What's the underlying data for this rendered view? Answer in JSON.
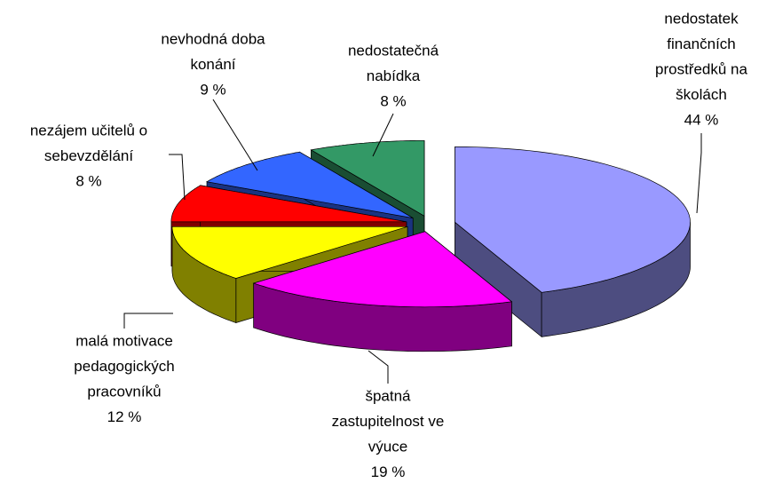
{
  "chart_data": {
    "type": "pie3d",
    "categories": [
      [
        "nedostatek",
        "finančních",
        "prostředků na",
        "školách"
      ],
      [
        "špatná",
        "zastupitelnost ve",
        "výuce"
      ],
      [
        "malá motivace",
        "pedagogických",
        "pracovníků"
      ],
      [
        "nezájem učitelů o",
        "sebevzdělání"
      ],
      [
        "nevhodná doba",
        "konání"
      ],
      [
        "nedostatečná",
        "nabídka"
      ]
    ],
    "values": [
      44,
      19,
      12,
      8,
      9,
      8
    ],
    "value_labels": [
      "44 %",
      "19 %",
      "12 %",
      "8 %",
      "9 %",
      "8 %"
    ],
    "colors": [
      "#9999ff",
      "#ff00ff",
      "#ffff00",
      "#ff0000",
      "#3366ff",
      "#339966"
    ],
    "side_colors": [
      "#4d4d80",
      "#800080",
      "#808000",
      "#800000",
      "#1a3380",
      "#1a4d33"
    ]
  }
}
